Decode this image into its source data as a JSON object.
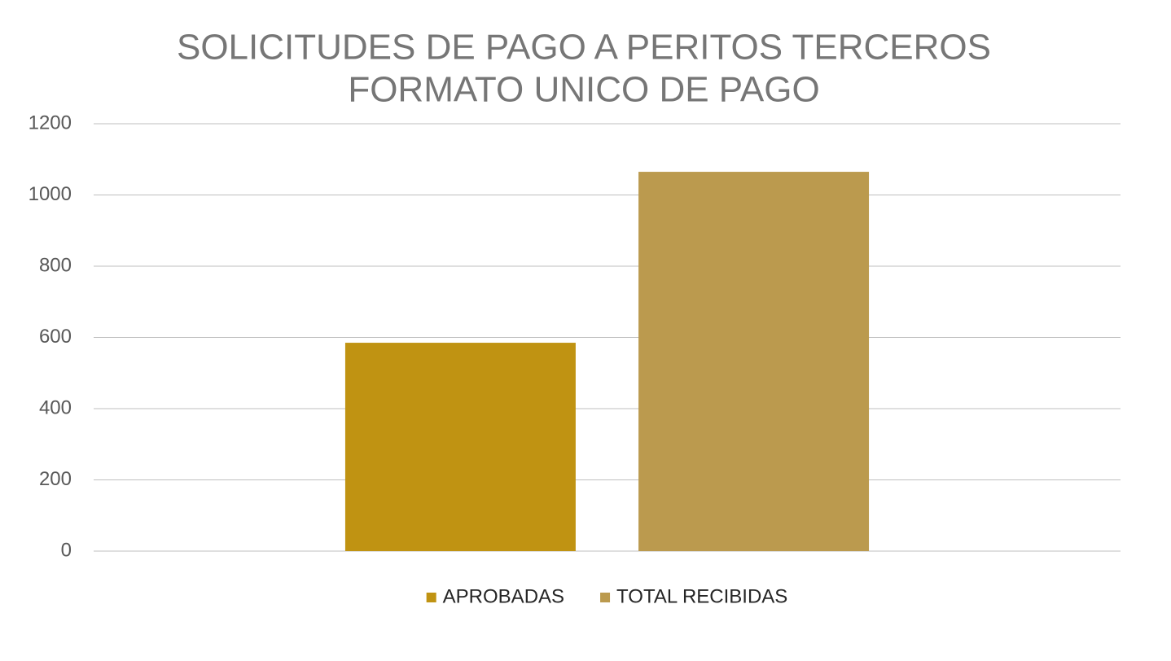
{
  "chart_data": {
    "type": "bar",
    "title": "SOLICITUDES DE PAGO A PERITOS TERCEROS",
    "subtitle": "FORMATO UNICO DE PAGO",
    "categories": [
      null
    ],
    "series": [
      {
        "name": "APROBADAS",
        "color": "#c09312",
        "values": [
          585
        ]
      },
      {
        "name": "TOTAL RECIBIDAS",
        "color": "#bb9a4e",
        "values": [
          1065
        ]
      }
    ],
    "ylim": [
      0,
      1200
    ],
    "yticks": [
      0,
      200,
      400,
      600,
      800,
      1000,
      1200
    ],
    "grid": true,
    "legend": "bottom"
  }
}
